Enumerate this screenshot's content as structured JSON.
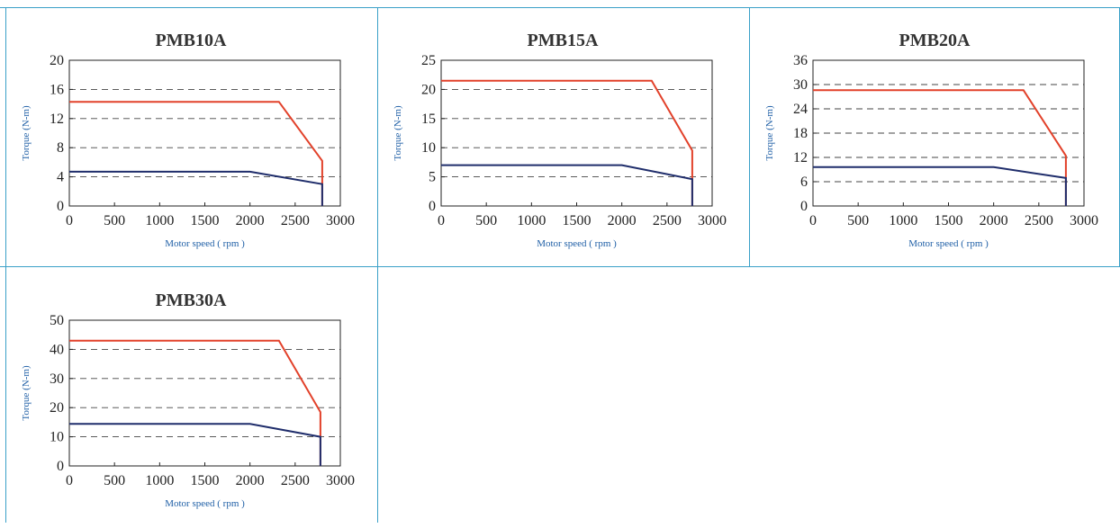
{
  "colors": {
    "frame": "#3aa0c8",
    "rated": "#e2412a",
    "continuous": "#1f2d6b",
    "axis_label": "#1f5fa6"
  },
  "chart_data": [
    {
      "type": "line",
      "title": "PMB10A",
      "xlabel": "Motor speed ( rpm )",
      "ylabel": "Torque (N-m)",
      "xlim": [
        0,
        3000
      ],
      "ylim": [
        0,
        20
      ],
      "x_ticks": [
        "0",
        "500",
        "1000",
        "1500",
        "2000",
        "2500",
        "3000"
      ],
      "y_ticks": [
        "0",
        "4",
        "8",
        "12",
        "16",
        "20"
      ],
      "grid": "horizontal dashed",
      "series": [
        {
          "color": "#e2412a",
          "points": [
            [
              0,
              14.3
            ],
            [
              2320,
              14.3
            ],
            [
              2800,
              6.2
            ],
            [
              2800,
              0
            ]
          ]
        },
        {
          "color": "#1f2d6b",
          "points": [
            [
              0,
              4.7
            ],
            [
              2000,
              4.7
            ],
            [
              2800,
              3.0
            ],
            [
              2800,
              0
            ]
          ]
        }
      ]
    },
    {
      "type": "line",
      "title": "PMB15A",
      "xlabel": "Motor speed ( rpm )",
      "ylabel": "Torque (N-m)",
      "xlim": [
        0,
        3000
      ],
      "ylim": [
        0,
        25
      ],
      "x_ticks": [
        "0",
        "500",
        "1000",
        "1500",
        "2000",
        "2500",
        "3000"
      ],
      "y_ticks": [
        "0",
        "5",
        "10",
        "15",
        "20",
        "25"
      ],
      "grid": "horizontal dashed",
      "series": [
        {
          "color": "#e2412a",
          "points": [
            [
              0,
              21.5
            ],
            [
              2330,
              21.5
            ],
            [
              2780,
              9.5
            ],
            [
              2780,
              0
            ]
          ]
        },
        {
          "color": "#1f2d6b",
          "points": [
            [
              0,
              7.0
            ],
            [
              2000,
              7.0
            ],
            [
              2780,
              4.6
            ],
            [
              2780,
              0
            ]
          ]
        }
      ]
    },
    {
      "type": "line",
      "title": "PMB20A",
      "xlabel": "Motor speed ( rpm )",
      "ylabel": "Torque (N-m)",
      "xlim": [
        0,
        3000
      ],
      "ylim": [
        0,
        36
      ],
      "x_ticks": [
        "0",
        "500",
        "1000",
        "1500",
        "2000",
        "2500",
        "3000"
      ],
      "y_ticks": [
        "0",
        "6",
        "12",
        "18",
        "24",
        "30",
        "36"
      ],
      "grid": "horizontal dashed",
      "series": [
        {
          "color": "#e2412a",
          "points": [
            [
              0,
              28.6
            ],
            [
              2330,
              28.6
            ],
            [
              2800,
              12.4
            ],
            [
              2800,
              0
            ]
          ]
        },
        {
          "color": "#1f2d6b",
          "points": [
            [
              0,
              9.6
            ],
            [
              2000,
              9.6
            ],
            [
              2800,
              6.9
            ],
            [
              2800,
              0
            ]
          ]
        }
      ]
    },
    {
      "type": "line",
      "title": "PMB30A",
      "xlabel": "Motor speed ( rpm )",
      "ylabel": "Torque (N-m)",
      "xlim": [
        0,
        3000
      ],
      "ylim": [
        0,
        50
      ],
      "x_ticks": [
        "0",
        "500",
        "1000",
        "1500",
        "2000",
        "2500",
        "3000"
      ],
      "y_ticks": [
        "0",
        "10",
        "20",
        "30",
        "40",
        "50"
      ],
      "grid": "horizontal dashed",
      "series": [
        {
          "color": "#e2412a",
          "points": [
            [
              0,
              43
            ],
            [
              2320,
              43
            ],
            [
              2780,
              18.5
            ],
            [
              2780,
              0
            ]
          ]
        },
        {
          "color": "#1f2d6b",
          "points": [
            [
              0,
              14.4
            ],
            [
              2000,
              14.4
            ],
            [
              2780,
              10
            ],
            [
              2780,
              0
            ]
          ]
        }
      ]
    }
  ]
}
